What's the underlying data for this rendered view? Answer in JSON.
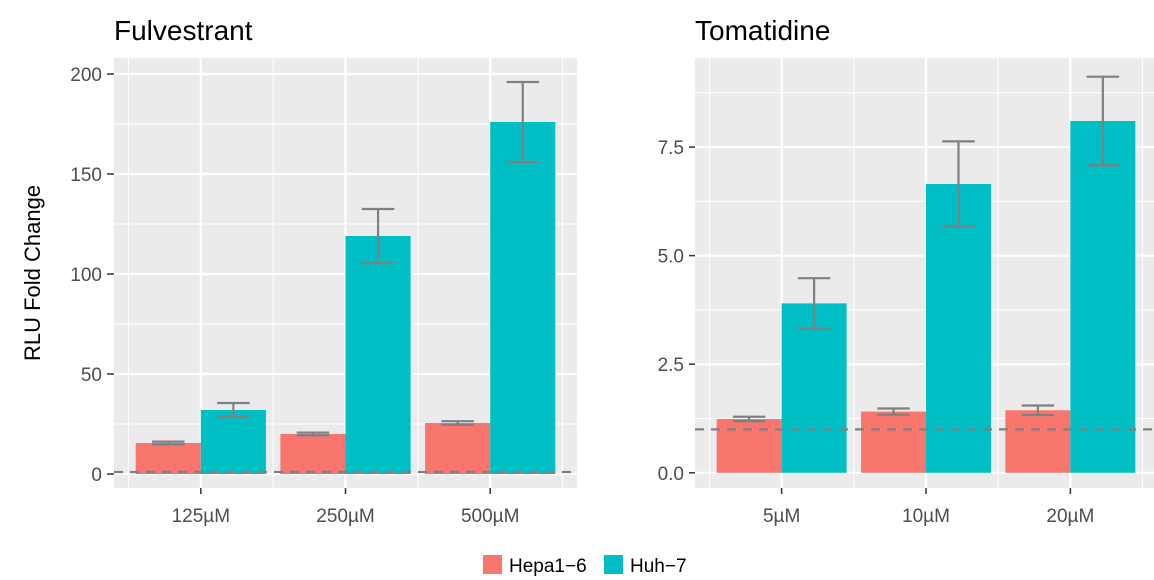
{
  "chart_data": [
    {
      "type": "bar",
      "title": "Fulvestrant",
      "ylabel": "RLU Fold Change",
      "xlabel": "",
      "categories": [
        "125µM",
        "250µM",
        "500µM"
      ],
      "ylim": [
        -7,
        208
      ],
      "yticks": [
        0,
        50,
        100,
        150,
        200
      ],
      "ytick_labels": [
        "0",
        "50",
        "100",
        "150",
        "200"
      ],
      "grid": true,
      "reference_line": 1,
      "series": [
        {
          "name": "Hepa1−6",
          "color": "#f8766d",
          "values": [
            15.5,
            20,
            25.5
          ],
          "errors": [
            0.7,
            0.7,
            0.9
          ]
        },
        {
          "name": "Huh−7",
          "color": "#00bfc4",
          "values": [
            32,
            119,
            176
          ],
          "errors": [
            3.5,
            13.5,
            20
          ]
        }
      ]
    },
    {
      "type": "bar",
      "title": "Tomatidine",
      "ylabel": "",
      "xlabel": "",
      "categories": [
        "5µM",
        "10µM",
        "20µM"
      ],
      "ylim": [
        -0.35,
        9.55
      ],
      "yticks": [
        0,
        2.5,
        5,
        7.5
      ],
      "ytick_labels": [
        "0.0",
        "2.5",
        "5.0",
        "7.5"
      ],
      "grid": true,
      "reference_line": 1,
      "series": [
        {
          "name": "Hepa1−6",
          "color": "#f8766d",
          "values": [
            1.24,
            1.41,
            1.44
          ],
          "errors": [
            0.05,
            0.07,
            0.11
          ]
        },
        {
          "name": "Huh−7",
          "color": "#00bfc4",
          "values": [
            3.9,
            6.65,
            8.1
          ],
          "errors": [
            0.58,
            0.98,
            1.02
          ]
        }
      ]
    }
  ],
  "legend": {
    "position": "bottom",
    "items": [
      {
        "label": "Hepa1−6",
        "color": "#f8766d"
      },
      {
        "label": "Huh−7",
        "color": "#00bfc4"
      }
    ]
  }
}
